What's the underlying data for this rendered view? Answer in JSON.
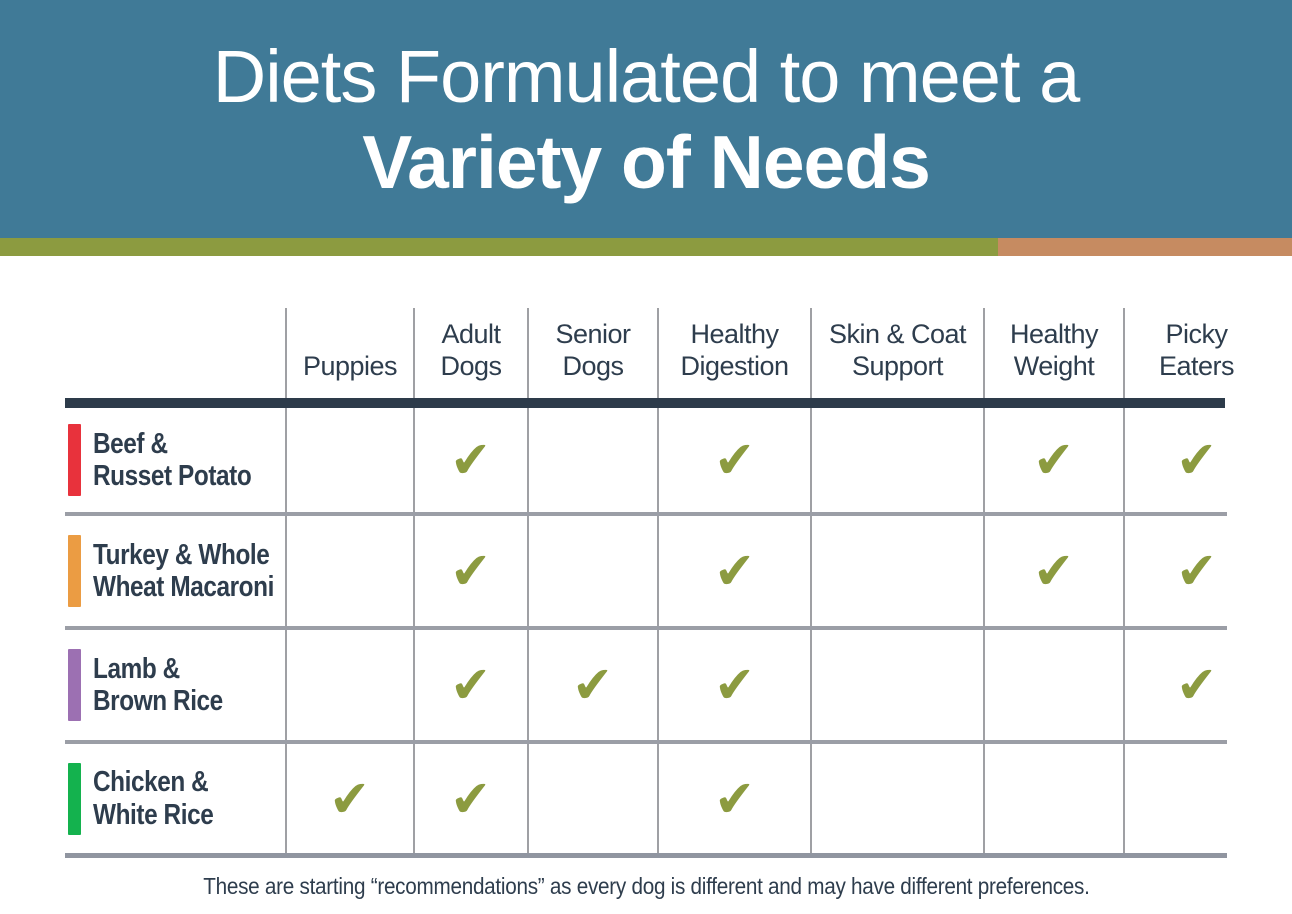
{
  "banner": {
    "title_line1": "Diets Formulated to meet a",
    "title_line2": "Variety of Needs",
    "bg_color": "#407A97",
    "text_color": "#FFFFFF"
  },
  "accent_divider": {
    "left_color": "#8C9B40",
    "right_color": "#C68B61"
  },
  "table": {
    "columns": [
      {
        "label": "Puppies",
        "lines": [
          "Puppies"
        ]
      },
      {
        "label": "Adult Dogs",
        "lines": [
          "Adult",
          "Dogs"
        ]
      },
      {
        "label": "Senior Dogs",
        "lines": [
          "Senior",
          "Dogs"
        ]
      },
      {
        "label": "Healthy Digestion",
        "lines": [
          "Healthy",
          "Digestion"
        ]
      },
      {
        "label": "Skin & Coat Support",
        "lines": [
          "Skin & Coat",
          "Support"
        ]
      },
      {
        "label": "Healthy Weight",
        "lines": [
          "Healthy",
          "Weight"
        ]
      },
      {
        "label": "Picky Eaters",
        "lines": [
          "Picky",
          "Eaters"
        ]
      }
    ],
    "rows": [
      {
        "label": "Beef & Russet Potato",
        "label_lines": [
          "Beef &",
          "Russet Potato"
        ],
        "accent_color": "#E8323C",
        "checks": [
          false,
          true,
          false,
          true,
          false,
          true,
          true
        ]
      },
      {
        "label": "Turkey & Whole Wheat Macaroni",
        "label_lines": [
          "Turkey & Whole",
          "Wheat Macaroni"
        ],
        "accent_color": "#EB9C43",
        "checks": [
          false,
          true,
          false,
          true,
          false,
          true,
          true
        ]
      },
      {
        "label": "Lamb & Brown Rice",
        "label_lines": [
          "Lamb &",
          "Brown Rice"
        ],
        "accent_color": "#9C70B2",
        "checks": [
          false,
          true,
          true,
          true,
          false,
          false,
          true
        ]
      },
      {
        "label": "Chicken & White Rice",
        "label_lines": [
          "Chicken &",
          "White Rice"
        ],
        "accent_color": "#14B24E",
        "checks": [
          true,
          true,
          false,
          true,
          false,
          false,
          false
        ]
      }
    ],
    "check_icon": "✔",
    "check_color": "#8C9B40",
    "grid_line_color": "#9FA0A4",
    "header_divider_color": "#2D3B4A",
    "text_color": "#2E3D4D"
  },
  "footer": {
    "note": "These are starting “recommendations” as every dog is different and may have different preferences."
  }
}
